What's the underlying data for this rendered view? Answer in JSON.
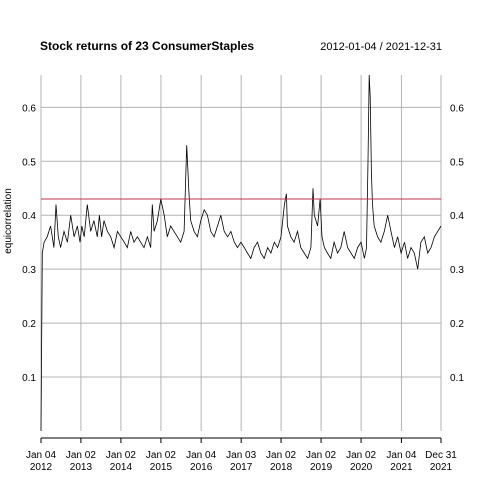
{
  "chart_data": {
    "type": "line",
    "title": "Stock returns of 23 ConsumerStaples",
    "date_range": "2012-01-04 / 2021-12-31",
    "ylabel": "equicorrelation",
    "xlabel": "",
    "ylim": [
      0.0,
      0.66
    ],
    "xlim": [
      "2012-01-04",
      "2021-12-31"
    ],
    "y_ticks": [
      0.1,
      0.2,
      0.3,
      0.4,
      0.5,
      0.6
    ],
    "y_tick_labels": [
      "0.1",
      "0.2",
      "0.3",
      "0.4",
      "0.5",
      "0.6"
    ],
    "x_ticks": [
      {
        "date": "2012-01-04",
        "line1": "Jan 04",
        "line2": "2012"
      },
      {
        "date": "2013-01-02",
        "line1": "Jan 02",
        "line2": "2013"
      },
      {
        "date": "2014-01-02",
        "line1": "Jan 02",
        "line2": "2014"
      },
      {
        "date": "2015-01-02",
        "line1": "Jan 02",
        "line2": "2015"
      },
      {
        "date": "2016-01-04",
        "line1": "Jan 04",
        "line2": "2016"
      },
      {
        "date": "2017-01-03",
        "line1": "Jan 03",
        "line2": "2017"
      },
      {
        "date": "2018-01-02",
        "line1": "Jan 02",
        "line2": "2018"
      },
      {
        "date": "2019-01-02",
        "line1": "Jan 02",
        "line2": "2019"
      },
      {
        "date": "2020-01-02",
        "line1": "Jan 02",
        "line2": "2020"
      },
      {
        "date": "2021-01-04",
        "line1": "Jan 04",
        "line2": "2021"
      },
      {
        "date": "2021-12-31",
        "line1": "Dec 31",
        "line2": "2021"
      }
    ],
    "reference_line": {
      "y": 0.43,
      "color": "#c0334d"
    },
    "grid": true,
    "series": [
      {
        "color": "#000000",
        "x": [
          "2012-01-04",
          "2012-01-16",
          "2012-02-01",
          "2012-03-01",
          "2012-04-01",
          "2012-05-01",
          "2012-05-20",
          "2012-06-10",
          "2012-07-01",
          "2012-08-01",
          "2012-09-01",
          "2012-10-01",
          "2012-11-01",
          "2012-12-01",
          "2012-12-25",
          "2013-01-10",
          "2013-02-01",
          "2013-03-01",
          "2013-04-01",
          "2013-05-01",
          "2013-06-01",
          "2013-06-20",
          "2013-07-10",
          "2013-08-01",
          "2013-09-01",
          "2013-10-01",
          "2013-11-01",
          "2013-12-01",
          "2014-01-01",
          "2014-02-01",
          "2014-03-01",
          "2014-04-01",
          "2014-05-01",
          "2014-06-01",
          "2014-07-01",
          "2014-08-01",
          "2014-09-01",
          "2014-10-01",
          "2014-10-15",
          "2014-11-01",
          "2014-12-01",
          "2015-01-01",
          "2015-02-01",
          "2015-03-01",
          "2015-04-01",
          "2015-05-01",
          "2015-06-01",
          "2015-07-01",
          "2015-08-01",
          "2015-08-25",
          "2015-09-15",
          "2015-10-01",
          "2015-11-01",
          "2015-12-01",
          "2016-01-01",
          "2016-02-01",
          "2016-03-01",
          "2016-04-01",
          "2016-05-01",
          "2016-06-01",
          "2016-07-01",
          "2016-08-01",
          "2016-09-01",
          "2016-10-01",
          "2016-11-01",
          "2016-12-01",
          "2017-01-01",
          "2017-02-01",
          "2017-03-01",
          "2017-04-01",
          "2017-05-01",
          "2017-06-01",
          "2017-07-01",
          "2017-08-01",
          "2017-09-01",
          "2017-10-01",
          "2017-11-01",
          "2017-12-01",
          "2018-01-01",
          "2018-02-01",
          "2018-02-20",
          "2018-03-01",
          "2018-04-01",
          "2018-05-01",
          "2018-06-01",
          "2018-07-01",
          "2018-08-01",
          "2018-09-01",
          "2018-10-01",
          "2018-10-20",
          "2018-11-01",
          "2018-12-01",
          "2018-12-24",
          "2019-01-10",
          "2019-02-01",
          "2019-03-01",
          "2019-04-01",
          "2019-05-01",
          "2019-06-01",
          "2019-07-01",
          "2019-08-01",
          "2019-09-01",
          "2019-10-01",
          "2019-11-01",
          "2019-12-01",
          "2020-01-01",
          "2020-02-01",
          "2020-02-20",
          "2020-03-05",
          "2020-03-16",
          "2020-03-25",
          "2020-04-05",
          "2020-04-15",
          "2020-05-01",
          "2020-06-01",
          "2020-07-01",
          "2020-08-01",
          "2020-09-01",
          "2020-10-01",
          "2020-11-01",
          "2020-12-01",
          "2021-01-01",
          "2021-02-01",
          "2021-03-01",
          "2021-04-01",
          "2021-05-01",
          "2021-06-01",
          "2021-07-01",
          "2021-08-01",
          "2021-09-01",
          "2021-10-01",
          "2021-11-01",
          "2021-12-01",
          "2021-12-31"
        ],
        "values": [
          0.0,
          0.33,
          0.35,
          0.36,
          0.38,
          0.34,
          0.42,
          0.36,
          0.34,
          0.37,
          0.35,
          0.4,
          0.36,
          0.38,
          0.35,
          0.38,
          0.36,
          0.42,
          0.37,
          0.39,
          0.36,
          0.4,
          0.36,
          0.39,
          0.37,
          0.36,
          0.34,
          0.37,
          0.36,
          0.35,
          0.34,
          0.37,
          0.35,
          0.36,
          0.35,
          0.34,
          0.36,
          0.34,
          0.42,
          0.37,
          0.39,
          0.43,
          0.4,
          0.36,
          0.38,
          0.37,
          0.36,
          0.35,
          0.37,
          0.53,
          0.44,
          0.39,
          0.37,
          0.36,
          0.39,
          0.41,
          0.4,
          0.37,
          0.36,
          0.38,
          0.4,
          0.37,
          0.36,
          0.37,
          0.35,
          0.34,
          0.35,
          0.34,
          0.33,
          0.32,
          0.34,
          0.35,
          0.33,
          0.32,
          0.34,
          0.33,
          0.35,
          0.34,
          0.36,
          0.42,
          0.44,
          0.38,
          0.36,
          0.35,
          0.37,
          0.34,
          0.33,
          0.32,
          0.34,
          0.45,
          0.4,
          0.38,
          0.43,
          0.36,
          0.34,
          0.33,
          0.32,
          0.35,
          0.33,
          0.34,
          0.37,
          0.34,
          0.33,
          0.32,
          0.34,
          0.35,
          0.32,
          0.34,
          0.5,
          0.66,
          0.62,
          0.48,
          0.42,
          0.38,
          0.36,
          0.35,
          0.37,
          0.4,
          0.37,
          0.34,
          0.36,
          0.33,
          0.35,
          0.32,
          0.34,
          0.33,
          0.3,
          0.35,
          0.36,
          0.33,
          0.34,
          0.36,
          0.37,
          0.38
        ]
      }
    ]
  }
}
